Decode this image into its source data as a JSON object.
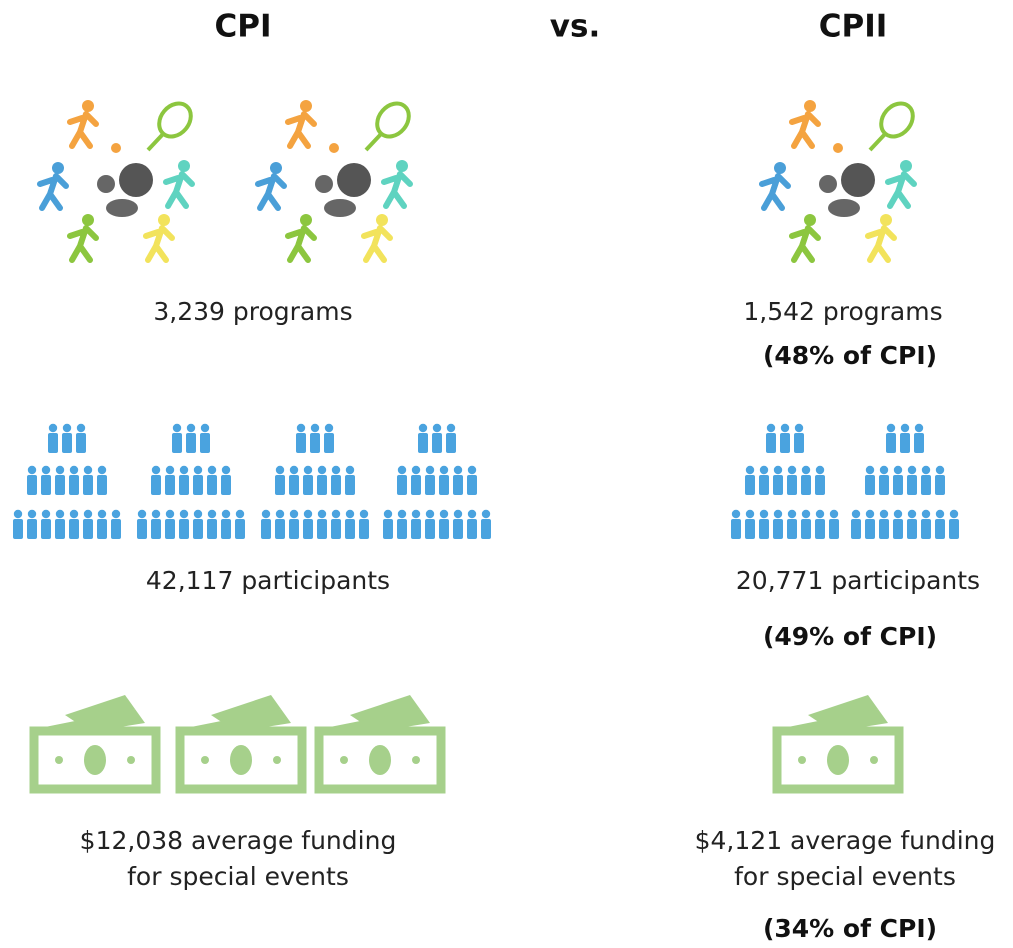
{
  "header": {
    "left": "CPI",
    "middle": "vs.",
    "right": "CPII"
  },
  "rows": [
    {
      "left": {
        "lines": [
          "3,239 programs"
        ]
      },
      "right": {
        "lines": [
          "1,542 programs"
        ],
        "note": "(48% of CPI)"
      }
    },
    {
      "left": {
        "lines": [
          "42,117 participants"
        ]
      },
      "right": {
        "lines": [
          "20,771 participants"
        ],
        "note": "(49% of CPI)"
      }
    },
    {
      "left": {
        "lines": [
          "$12,038 average funding",
          "for special events"
        ]
      },
      "right": {
        "lines": [
          "$4,121 average funding",
          "for special events"
        ],
        "note": "(34% of CPI)"
      }
    }
  ]
}
